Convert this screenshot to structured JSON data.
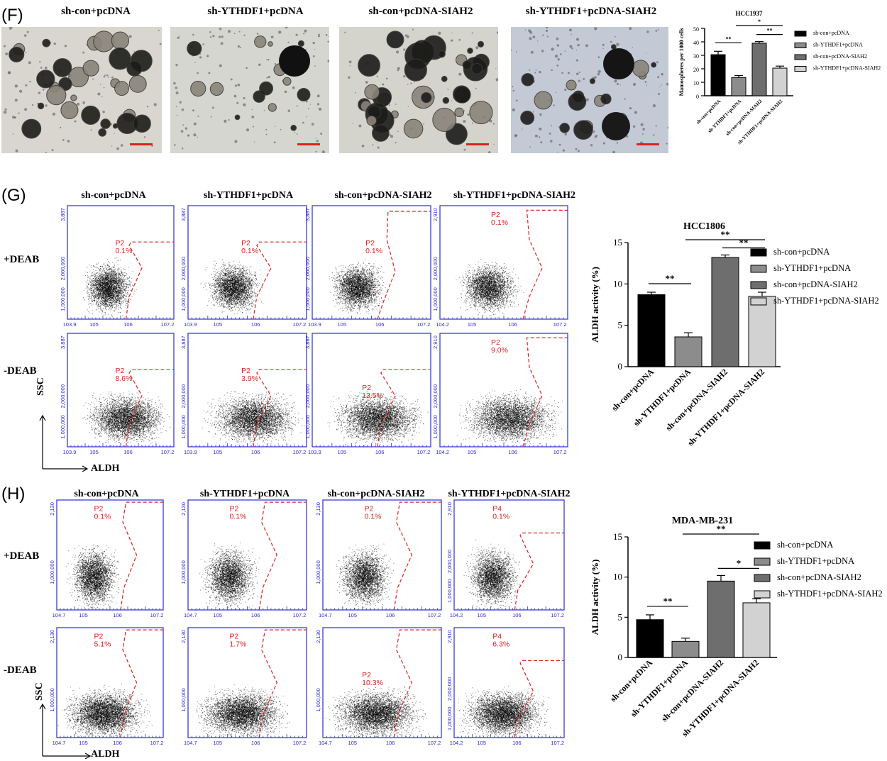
{
  "panels": {
    "F": {
      "letter": "(F)",
      "columns": [
        "sh-con+pcDNA",
        "sh-YTHDF1+pcDNA",
        "sh-con+pcDNA-SIAH2",
        "sh-YTHDF1+pcDNA-SIAH2"
      ]
    },
    "G": {
      "letter": "(G)",
      "columns": [
        "sh-con+pcDNA",
        "sh-YTHDF1+pcDNA",
        "sh-con+pcDNA-SIAH2",
        "sh-YTHDF1+pcDNA-SIAH2"
      ],
      "rows": [
        "+DEAB",
        "-DEAB"
      ],
      "ssc_label": "SSC",
      "aldh_label": "ALDH",
      "gates": [
        [
          {
            "name": "P2",
            "pct": "0.1%"
          },
          {
            "name": "P2",
            "pct": "0.1%"
          },
          {
            "name": "P2",
            "pct": "0.1%"
          },
          {
            "name": "P2",
            "pct": "0.1%"
          }
        ],
        [
          {
            "name": "P2",
            "pct": "8.6%"
          },
          {
            "name": "P2",
            "pct": "3.9%"
          },
          {
            "name": "P2",
            "pct": "13.5%"
          },
          {
            "name": "P2",
            "pct": "9.0%"
          }
        ]
      ],
      "y_ticks": [
        [
          "1,000,000",
          "2,000,000",
          "3,887"
        ],
        [
          "1,000,000",
          "2,000,000",
          "3,887"
        ],
        [
          "1,000,000",
          "2,000,000",
          "3,887"
        ],
        [
          "1,000,000",
          "2,000,000",
          "2,910"
        ]
      ],
      "x_ticks": [
        [
          "10^3.9",
          "10^5",
          "10^6",
          "10^7.2"
        ],
        [
          "10^3.9",
          "10^5",
          "10^6",
          "10^7.2"
        ],
        [
          "10^3.9",
          "10^5",
          "10^6",
          "10^7.2"
        ],
        [
          "10^4.2",
          "10^5",
          "10^6",
          "10^7.2"
        ]
      ]
    },
    "H": {
      "letter": "(H)",
      "columns": [
        "sh-con+pcDNA",
        "sh-YTHDF1+pcDNA",
        "sh-con+pcDNA-SIAH2",
        "sh-YTHDF1+pcDNA-SIAH2"
      ],
      "rows": [
        "+DEAB",
        "-DEAB"
      ],
      "ssc_label": "SSC",
      "aldh_label": "ALDH",
      "gates": [
        [
          {
            "name": "P2",
            "pct": "0.1%"
          },
          {
            "name": "P2",
            "pct": "0.1%"
          },
          {
            "name": "P2",
            "pct": "0.1%"
          },
          {
            "name": "P4",
            "pct": "0.1%"
          }
        ],
        [
          {
            "name": "P2",
            "pct": "5.1%"
          },
          {
            "name": "P2",
            "pct": "1.7%"
          },
          {
            "name": "P2",
            "pct": "10.3%"
          },
          {
            "name": "P4",
            "pct": "6.3%"
          }
        ]
      ],
      "y_ticks": [
        [
          "1,000,000",
          "2,130"
        ],
        [
          "1,000,000",
          "2,130"
        ],
        [
          "1,000,000",
          "2,130"
        ],
        [
          "1,000,000",
          "2,000,000",
          "2,910"
        ]
      ],
      "x_ticks": [
        [
          "10^4.7",
          "10^5",
          "10^6",
          "10^7.2"
        ],
        [
          "10^4.7",
          "10^5",
          "10^6",
          "10^7.2"
        ],
        [
          "10^4.7",
          "10^5",
          "10^6",
          "10^7.2"
        ],
        [
          "10^4.2",
          "10^5",
          "10^6",
          "10^7.2"
        ]
      ]
    }
  },
  "chart_data": [
    {
      "type": "bar",
      "title": "HCC1937",
      "ylabel": "Mamospheres per 1000 cells",
      "categories": [
        "sh-con+pcDNA",
        "sh-YTHDF1+pcDNA",
        "sh-con+pcDNA-SIAH2",
        "sh-YTHDF1+pcDNA-SIAH2"
      ],
      "values": [
        30.5,
        13.5,
        39,
        20.5
      ],
      "errors": [
        2.5,
        1.5,
        1.2,
        1.5
      ],
      "ylim": [
        0,
        50
      ],
      "yticks": [
        "0",
        "10",
        "20",
        "30",
        "40",
        "50"
      ],
      "colors": [
        "#000000",
        "#8c8c8c",
        "#6e6e6e",
        "#d2d2d2"
      ],
      "significance": [
        {
          "from": 0,
          "to": 1,
          "label": "**"
        },
        {
          "from": 1,
          "to": 3,
          "label": "*"
        },
        {
          "from": 2,
          "to": 3,
          "label": "**"
        }
      ],
      "legend": [
        "sh-con+pcDNA",
        "sh-YTHDF1+pcDNA",
        "sh-con+pcDNA-SIAH2",
        "sh-YTHDF1+pcDNA-SIAH2"
      ],
      "legend_position": "right"
    },
    {
      "type": "bar",
      "title": "HCC1806",
      "ylabel": "ALDH activity (%)",
      "categories": [
        "sh-con+pcDNA",
        "sh-YTHDF1+pcDNA",
        "sh-con+pcDNA-SIAH2",
        "sh-YTHDF1+pcDNA-SIAH2"
      ],
      "values": [
        8.7,
        3.6,
        13.2,
        8.5
      ],
      "errors": [
        0.3,
        0.5,
        0.3,
        0.5
      ],
      "ylim": [
        0,
        15
      ],
      "yticks": [
        "0",
        "5",
        "10",
        "15"
      ],
      "colors": [
        "#000000",
        "#8c8c8c",
        "#6e6e6e",
        "#d2d2d2"
      ],
      "significance": [
        {
          "from": 0,
          "to": 1,
          "label": "**"
        },
        {
          "from": 1,
          "to": 3,
          "label": "**"
        },
        {
          "from": 2,
          "to": 3,
          "label": "**"
        }
      ],
      "legend": [
        "sh-con+pcDNA",
        "sh-YTHDF1+pcDNA",
        "sh-con+pcDNA-SIAH2",
        "sh-YTHDF1+pcDNA-SIAH2"
      ],
      "legend_position": "right"
    },
    {
      "type": "bar",
      "title": "MDA-MB-231",
      "ylabel": "ALDH activity (%)",
      "categories": [
        "sh-con+pcDNA",
        "sh-YTHDF1+pcDNA",
        "sh-con+pcDNA-SIAH2",
        "sh-YTHDF1+pcDNA-SIAH2"
      ],
      "values": [
        4.7,
        2.0,
        9.5,
        6.8
      ],
      "errors": [
        0.6,
        0.4,
        0.7,
        0.5
      ],
      "ylim": [
        0,
        15
      ],
      "yticks": [
        "0",
        "5",
        "10",
        "15"
      ],
      "colors": [
        "#000000",
        "#8c8c8c",
        "#6e6e6e",
        "#d2d2d2"
      ],
      "significance": [
        {
          "from": 0,
          "to": 1,
          "label": "**"
        },
        {
          "from": 1,
          "to": 3,
          "label": "**"
        },
        {
          "from": 2,
          "to": 3,
          "label": "*"
        }
      ],
      "legend": [
        "sh-con+pcDNA",
        "sh-YTHDF1+pcDNA",
        "sh-con+pcDNA-SIAH2",
        "sh-YTHDF1+pcDNA-SIAH2"
      ],
      "legend_position": "right"
    }
  ]
}
